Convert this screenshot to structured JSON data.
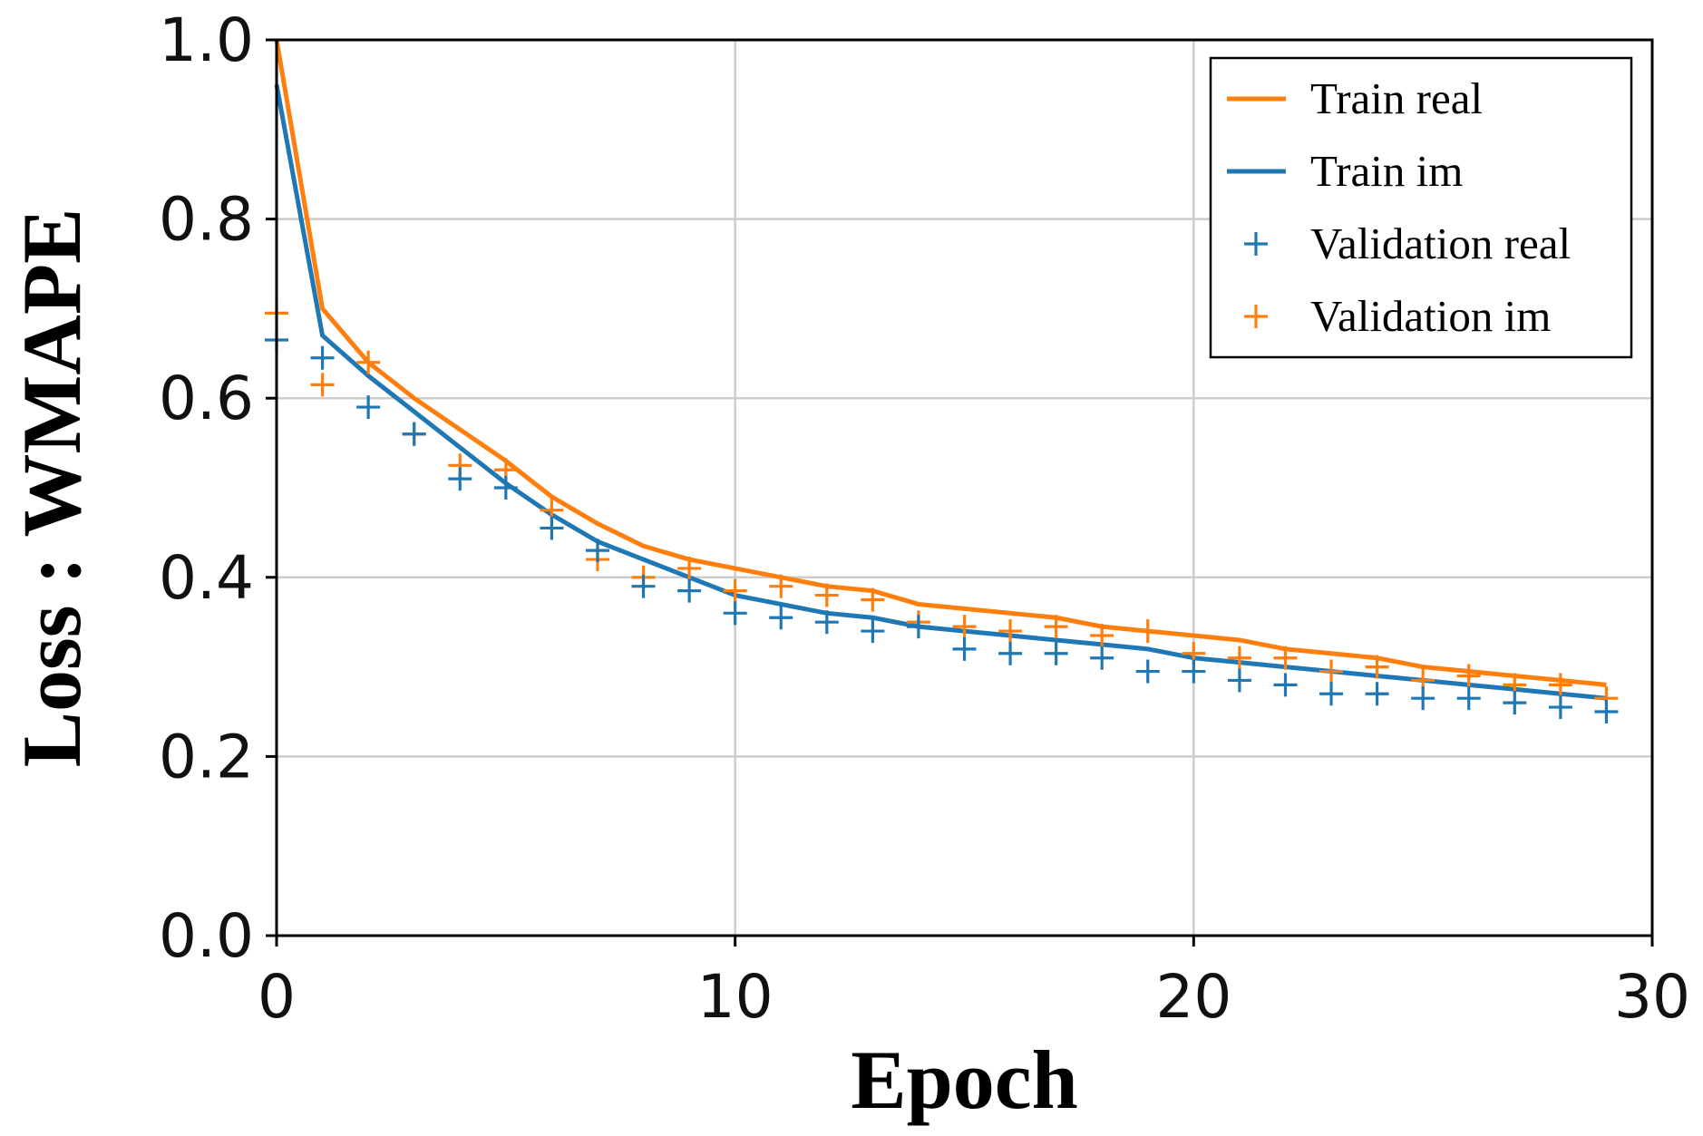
{
  "chart_data": {
    "type": "line",
    "title": "",
    "xlabel": "Epoch",
    "ylabel": "Loss : WMAPE",
    "xlim": [
      0,
      30
    ],
    "ylim": [
      0.0,
      1.0
    ],
    "xticks": [
      0,
      10,
      20,
      30
    ],
    "xtick_labels": [
      "0",
      "10",
      "20",
      "30"
    ],
    "yticks": [
      0.0,
      0.2,
      0.4,
      0.6,
      0.8,
      1.0
    ],
    "ytick_labels": [
      "0.0",
      "0.2",
      "0.4",
      "0.6",
      "0.8",
      "1.0"
    ],
    "grid": true,
    "legend_position": "top-right",
    "x": [
      0,
      1,
      2,
      3,
      4,
      5,
      6,
      7,
      8,
      9,
      10,
      11,
      12,
      13,
      14,
      15,
      16,
      17,
      18,
      19,
      20,
      21,
      22,
      23,
      24,
      25,
      26,
      27,
      28,
      29
    ],
    "series": [
      {
        "name": "Train real",
        "kind": "line",
        "color": "#ff7f0e",
        "values": [
          1.0,
          0.7,
          0.64,
          0.6,
          0.565,
          0.53,
          0.49,
          0.46,
          0.435,
          0.42,
          0.41,
          0.4,
          0.39,
          0.385,
          0.37,
          0.365,
          0.36,
          0.355,
          0.345,
          0.34,
          0.335,
          0.33,
          0.32,
          0.315,
          0.31,
          0.3,
          0.295,
          0.29,
          0.285,
          0.28
        ]
      },
      {
        "name": "Train im",
        "kind": "line",
        "color": "#1f77b4",
        "values": [
          0.95,
          0.67,
          0.625,
          0.585,
          0.545,
          0.505,
          0.47,
          0.44,
          0.42,
          0.4,
          0.38,
          0.37,
          0.36,
          0.355,
          0.345,
          0.34,
          0.335,
          0.33,
          0.325,
          0.32,
          0.31,
          0.305,
          0.3,
          0.295,
          0.29,
          0.285,
          0.28,
          0.275,
          0.27,
          0.265
        ]
      },
      {
        "name": "Validation real",
        "kind": "marker",
        "color": "#1f77b4",
        "values": [
          0.665,
          0.645,
          0.59,
          0.56,
          0.51,
          0.5,
          0.455,
          0.43,
          0.39,
          0.385,
          0.36,
          0.355,
          0.35,
          0.34,
          0.345,
          0.32,
          0.315,
          0.315,
          0.31,
          0.295,
          0.295,
          0.285,
          0.28,
          0.27,
          0.27,
          0.265,
          0.265,
          0.26,
          0.255,
          0.25
        ]
      },
      {
        "name": "Validation im",
        "kind": "marker",
        "color": "#ff7f0e",
        "values": [
          0.695,
          0.615,
          0.64,
          0.56,
          0.525,
          0.52,
          0.475,
          0.42,
          0.4,
          0.41,
          0.385,
          0.39,
          0.38,
          0.375,
          0.35,
          0.345,
          0.34,
          0.345,
          0.335,
          0.34,
          0.315,
          0.31,
          0.31,
          0.295,
          0.3,
          0.285,
          0.29,
          0.28,
          0.28,
          0.265
        ]
      }
    ]
  }
}
